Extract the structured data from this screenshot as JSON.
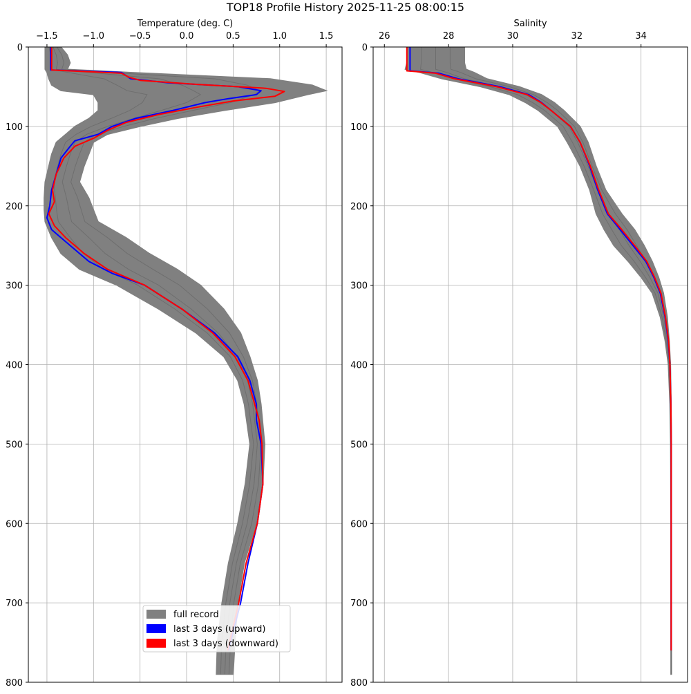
{
  "figure": {
    "title": "TOP18 Profile History 2025-11-25 08:00:15"
  },
  "colors": {
    "full_record": "#808080",
    "upward": "#0000ff",
    "downward": "#ff0000",
    "grid": "#b0b0b0"
  },
  "legend": {
    "placement": "lower-center of left panel",
    "items": [
      {
        "key": "full",
        "label": "full record"
      },
      {
        "key": "up",
        "label": "last 3 days (upward)"
      },
      {
        "key": "down",
        "label": "last 3 days (downward)"
      }
    ]
  },
  "chart_data": [
    {
      "type": "line",
      "xlabel": "Temperature (deg. C)",
      "ylabel": "",
      "x_axis_position": "top",
      "y_inverted": true,
      "grid": true,
      "xlim": [
        -1.7,
        1.67
      ],
      "ylim": [
        0,
        800
      ],
      "xticks": [
        -1.5,
        -1.0,
        -0.5,
        0.0,
        0.5,
        1.0,
        1.5
      ],
      "xtick_labels": [
        "−1.5",
        "−1.0",
        "−0.5",
        "0.0",
        "0.5",
        "1.0",
        "1.5"
      ],
      "yticks": [
        0,
        100,
        200,
        300,
        400,
        500,
        600,
        700,
        800
      ],
      "ytick_labels": [
        "0",
        "100",
        "200",
        "300",
        "400",
        "500",
        "600",
        "700",
        "800"
      ],
      "series": [
        {
          "name": "full record",
          "style": "envelope",
          "depth": [
            0,
            10,
            20,
            28,
            32,
            40,
            48,
            55,
            60,
            70,
            80,
            90,
            100,
            110,
            120,
            135,
            150,
            170,
            190,
            205,
            220,
            240,
            260,
            280,
            300,
            330,
            360,
            390,
            420,
            450,
            500,
            550,
            600,
            650,
            700,
            750,
            790
          ],
          "min": [
            -1.52,
            -1.52,
            -1.52,
            -1.52,
            -1.5,
            -1.48,
            -1.45,
            -1.35,
            -1.0,
            -0.95,
            -0.95,
            -1.05,
            -1.2,
            -1.3,
            -1.4,
            -1.45,
            -1.48,
            -1.52,
            -1.53,
            -1.53,
            -1.52,
            -1.45,
            -1.35,
            -1.15,
            -0.75,
            -0.3,
            0.1,
            0.4,
            0.55,
            0.62,
            0.68,
            0.63,
            0.55,
            0.45,
            0.38,
            0.33,
            0.32
          ],
          "max": [
            -1.35,
            -1.28,
            -1.25,
            -1.28,
            -0.6,
            0.9,
            1.35,
            1.5,
            1.3,
            0.95,
            0.4,
            -0.1,
            -0.5,
            -0.85,
            -1.0,
            -1.05,
            -1.1,
            -1.15,
            -1.05,
            -1.0,
            -0.95,
            -0.65,
            -0.4,
            -0.1,
            0.15,
            0.4,
            0.58,
            0.68,
            0.76,
            0.8,
            0.84,
            0.82,
            0.75,
            0.62,
            0.55,
            0.52,
            0.5
          ]
        },
        {
          "name": "last 3 days (upward)",
          "depth": [
            0,
            10,
            20,
            29,
            32,
            36,
            40,
            45,
            50,
            55,
            60,
            65,
            70,
            80,
            90,
            100,
            110,
            118,
            125,
            140,
            160,
            180,
            200,
            215,
            230,
            250,
            270,
            285,
            300,
            330,
            360,
            390,
            420,
            450,
            470,
            500,
            550,
            600,
            650,
            700,
            760
          ],
          "temp": [
            -1.46,
            -1.46,
            -1.46,
            -1.46,
            -0.7,
            -0.65,
            -0.6,
            -0.2,
            0.55,
            0.8,
            0.75,
            0.45,
            0.2,
            -0.15,
            -0.55,
            -0.8,
            -0.95,
            -1.2,
            -1.25,
            -1.35,
            -1.4,
            -1.45,
            -1.47,
            -1.5,
            -1.45,
            -1.25,
            -1.05,
            -0.8,
            -0.45,
            -0.05,
            0.3,
            0.55,
            0.68,
            0.75,
            0.75,
            0.8,
            0.82,
            0.76,
            0.66,
            0.58,
            0.45
          ]
        },
        {
          "name": "last 3 days (downward)",
          "depth": [
            0,
            10,
            20,
            29,
            33,
            38,
            42,
            47,
            52,
            56,
            62,
            68,
            75,
            85,
            95,
            105,
            115,
            125,
            140,
            160,
            180,
            195,
            210,
            225,
            240,
            260,
            280,
            300,
            330,
            360,
            390,
            420,
            445,
            470,
            500,
            550,
            600,
            650,
            700,
            760
          ],
          "temp": [
            -1.45,
            -1.45,
            -1.45,
            -1.45,
            -0.7,
            -0.62,
            -0.5,
            0.1,
            0.85,
            1.05,
            0.95,
            0.5,
            0.15,
            -0.3,
            -0.65,
            -0.85,
            -1.0,
            -1.2,
            -1.32,
            -1.4,
            -1.44,
            -1.42,
            -1.48,
            -1.42,
            -1.3,
            -1.1,
            -0.85,
            -0.45,
            -0.05,
            0.28,
            0.52,
            0.66,
            0.72,
            0.78,
            0.81,
            0.82,
            0.76,
            0.64,
            0.56,
            0.44
          ]
        }
      ]
    },
    {
      "type": "line",
      "xlabel": "Salinity",
      "ylabel": "",
      "x_axis_position": "top",
      "y_inverted": true,
      "grid": true,
      "xlim": [
        25.65,
        35.45
      ],
      "ylim": [
        0,
        800
      ],
      "xticks": [
        26,
        28,
        30,
        32,
        34
      ],
      "xtick_labels": [
        "26",
        "28",
        "30",
        "32",
        "34"
      ],
      "yticks": [
        0,
        100,
        200,
        300,
        400,
        500,
        600,
        700,
        800
      ],
      "ytick_labels": [
        "0",
        "100",
        "200",
        "300",
        "400",
        "500",
        "600",
        "700",
        "800"
      ],
      "series": [
        {
          "name": "full record",
          "style": "envelope",
          "depth": [
            0,
            10,
            20,
            28,
            32,
            40,
            50,
            60,
            70,
            80,
            100,
            120,
            150,
            180,
            210,
            230,
            250,
            270,
            290,
            310,
            340,
            370,
            400,
            450,
            500,
            600,
            700,
            790
          ],
          "min": [
            26.7,
            26.7,
            26.7,
            26.65,
            27.1,
            27.8,
            29.0,
            29.9,
            30.4,
            30.8,
            31.4,
            31.7,
            32.1,
            32.4,
            32.6,
            32.85,
            33.15,
            33.6,
            34.0,
            34.35,
            34.6,
            34.75,
            34.85,
            34.9,
            34.92,
            34.93,
            34.93,
            34.93
          ],
          "max": [
            28.5,
            28.5,
            28.5,
            28.55,
            28.8,
            29.2,
            30.2,
            30.9,
            31.3,
            31.6,
            32.1,
            32.35,
            32.6,
            32.9,
            33.4,
            33.8,
            34.1,
            34.35,
            34.55,
            34.7,
            34.82,
            34.88,
            34.92,
            34.94,
            34.95,
            34.95,
            34.95,
            34.95
          ]
        },
        {
          "name": "last 3 days (upward)",
          "depth": [
            0,
            10,
            20,
            30,
            33,
            40,
            50,
            60,
            70,
            80,
            100,
            120,
            150,
            180,
            210,
            230,
            250,
            270,
            290,
            310,
            340,
            370,
            400,
            450,
            500,
            600,
            700,
            760
          ],
          "sal": [
            26.8,
            26.8,
            26.8,
            26.8,
            27.7,
            28.3,
            29.6,
            30.5,
            30.9,
            31.2,
            31.8,
            32.1,
            32.4,
            32.65,
            32.95,
            33.35,
            33.75,
            34.15,
            34.4,
            34.6,
            34.75,
            34.85,
            34.9,
            34.93,
            34.94,
            34.94,
            34.94,
            34.94
          ]
        },
        {
          "name": "last 3 days (downward)",
          "depth": [
            0,
            10,
            20,
            30,
            33,
            40,
            50,
            60,
            70,
            80,
            100,
            120,
            150,
            180,
            210,
            230,
            250,
            270,
            290,
            310,
            340,
            370,
            400,
            450,
            500,
            600,
            700,
            760
          ],
          "sal": [
            26.7,
            26.7,
            26.7,
            26.7,
            27.6,
            28.2,
            29.5,
            30.45,
            30.88,
            31.2,
            31.8,
            32.1,
            32.42,
            32.68,
            32.98,
            33.4,
            33.8,
            34.18,
            34.42,
            34.62,
            34.76,
            34.86,
            34.9,
            34.93,
            34.94,
            34.94,
            34.94,
            34.94
          ]
        }
      ]
    }
  ]
}
